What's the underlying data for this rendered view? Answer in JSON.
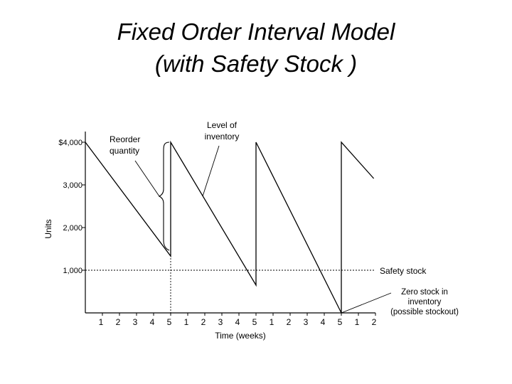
{
  "slide": {
    "title_line1": "Fixed Order Interval Model",
    "title_line2": "(with Safety Stock )"
  },
  "chart_data": {
    "type": "line",
    "title": "",
    "xlabel": "Time (weeks)",
    "ylabel": "Units",
    "ylim": [
      0,
      4000
    ],
    "xlim": [
      0,
      17
    ],
    "x_tick_labels": [
      "1",
      "2",
      "3",
      "4",
      "5",
      "1",
      "2",
      "3",
      "4",
      "5",
      "1",
      "2",
      "3",
      "4",
      "5",
      "1",
      "2"
    ],
    "y_tick_labels": [
      {
        "value": 1000,
        "label": "1,000"
      },
      {
        "value": 2000,
        "label": "2,000"
      },
      {
        "value": 3000,
        "label": "3,000"
      },
      {
        "value": 4000,
        "label": "$4,000"
      }
    ],
    "grid": false,
    "series": [
      {
        "points": [
          {
            "x": 0,
            "y": 4000
          },
          {
            "x": 5,
            "y": 1330
          },
          {
            "x": 5,
            "y": 4000
          },
          {
            "x": 10,
            "y": 650
          },
          {
            "x": 10,
            "y": 4000
          },
          {
            "x": 15,
            "y": 0
          },
          {
            "x": 15,
            "y": 4000
          },
          {
            "x": 16.9,
            "y": 3150
          }
        ]
      }
    ],
    "safety_stock": 1000,
    "reorder_week": 5,
    "annotations": {
      "reorder_quantity": "Reorder\nquantity",
      "level_of_inventory": "Level of\ninventory",
      "safety_stock": "Safety stock",
      "zero_stock": "Zero stock in\ninventory\n(possible stockout)"
    },
    "colors": {
      "line": "#000000",
      "background": "#ffffff"
    }
  }
}
